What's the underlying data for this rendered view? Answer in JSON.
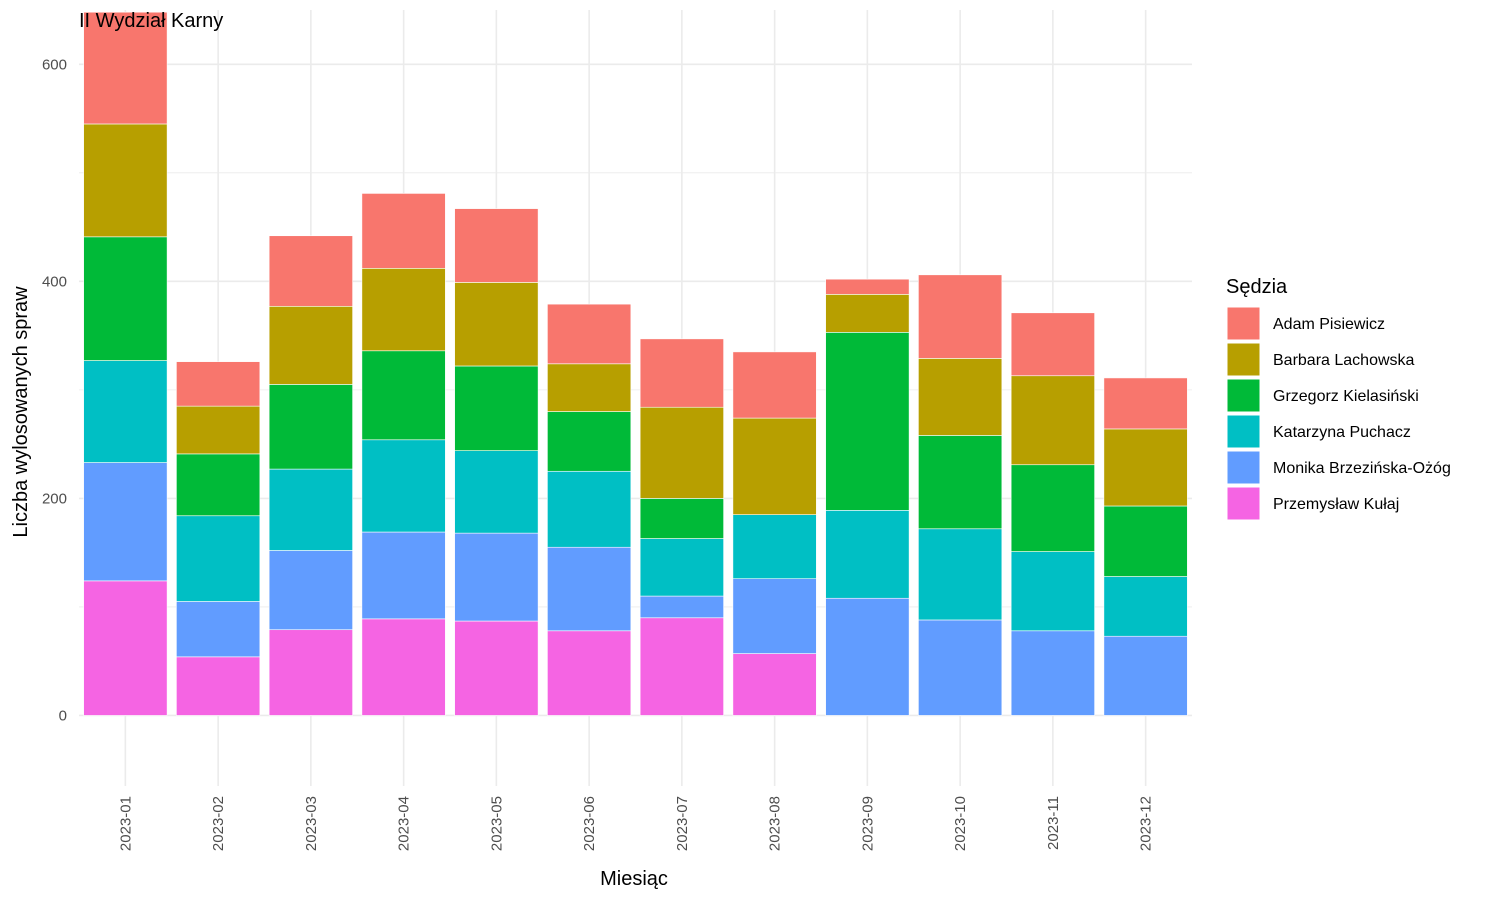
{
  "chart_data": {
    "type": "bar",
    "stacked": true,
    "title": "II Wydział Karny",
    "xlabel": "Miesiąc",
    "ylabel": "Liczba wylosowanych spraw",
    "ylim": [
      -65,
      650
    ],
    "yticks": [
      0,
      200,
      400,
      600
    ],
    "grid": true,
    "legend": {
      "title": "Sędzia",
      "position": "right"
    },
    "categories": [
      "2023-01",
      "2023-02",
      "2023-03",
      "2023-04",
      "2023-05",
      "2023-06",
      "2023-07",
      "2023-08",
      "2023-09",
      "2023-10",
      "2023-11",
      "2023-12"
    ],
    "series": [
      {
        "name": "Przemysław Kułaj",
        "color": "#F564E3",
        "values": [
          124,
          54,
          79,
          89,
          87,
          78,
          90,
          57,
          0,
          0,
          0,
          0
        ]
      },
      {
        "name": "Monika Brzezińska-Ożóg",
        "color": "#619CFF",
        "values": [
          109,
          51,
          73,
          80,
          81,
          77,
          20,
          69,
          108,
          88,
          78,
          73
        ]
      },
      {
        "name": "Katarzyna Puchacz",
        "color": "#00BFC4",
        "values": [
          94,
          79,
          75,
          85,
          76,
          70,
          53,
          59,
          81,
          84,
          73,
          55
        ]
      },
      {
        "name": "Grzegorz Kielasiński",
        "color": "#00BA38",
        "values": [
          114,
          57,
          78,
          82,
          78,
          55,
          37,
          0,
          164,
          86,
          80,
          65
        ]
      },
      {
        "name": "Barbara Lachowska",
        "color": "#B79F00",
        "values": [
          104,
          44,
          72,
          76,
          77,
          44,
          84,
          89,
          35,
          71,
          82,
          71
        ]
      },
      {
        "name": "Adam Pisiewicz",
        "color": "#F8766D",
        "values": [
          103,
          41,
          65,
          69,
          68,
          55,
          63,
          61,
          14,
          77,
          58,
          47
        ]
      }
    ],
    "legend_order": [
      "Adam Pisiewicz",
      "Barbara Lachowska",
      "Grzegorz Kielasiński",
      "Katarzyna Puchacz",
      "Monika Brzezińska-Ożóg",
      "Przemysław Kułaj"
    ]
  }
}
